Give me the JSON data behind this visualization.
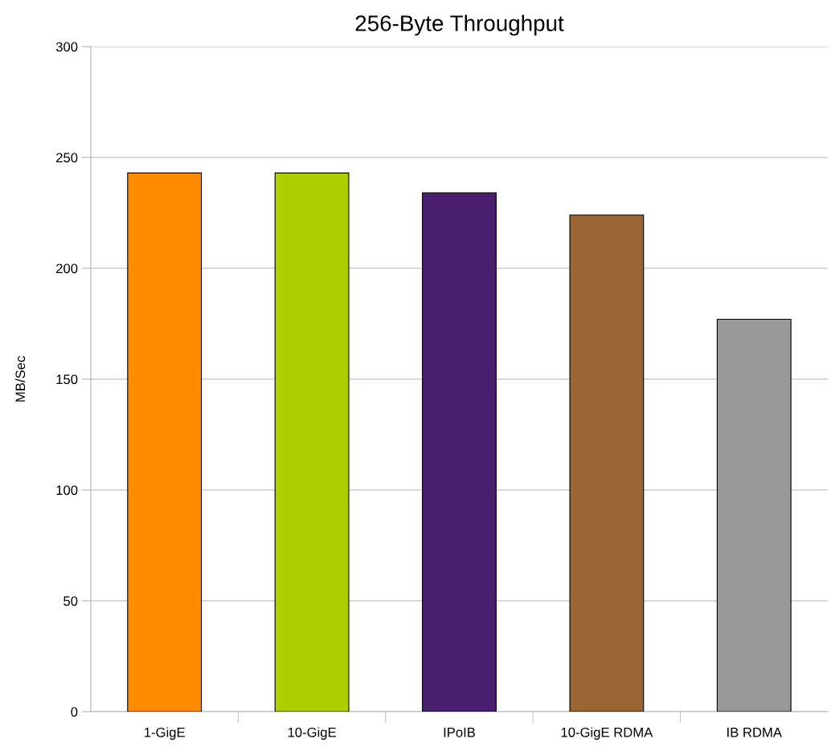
{
  "chart_data": {
    "type": "bar",
    "title": "256-Byte Throughput",
    "ylabel": "MB/Sec",
    "categories": [
      "1-GigE",
      "10-GigE",
      "IPoIB",
      "10-GigE RDMA",
      "IB RDMA"
    ],
    "values": [
      243,
      243,
      234,
      224,
      177
    ],
    "colors": [
      "#ff8c00",
      "#aed000",
      "#4b1f6f",
      "#996633",
      "#999999"
    ],
    "ylim": [
      0,
      300
    ],
    "yticks": [
      0,
      50,
      100,
      150,
      200,
      250,
      300
    ],
    "grid": "y",
    "legend": false
  }
}
